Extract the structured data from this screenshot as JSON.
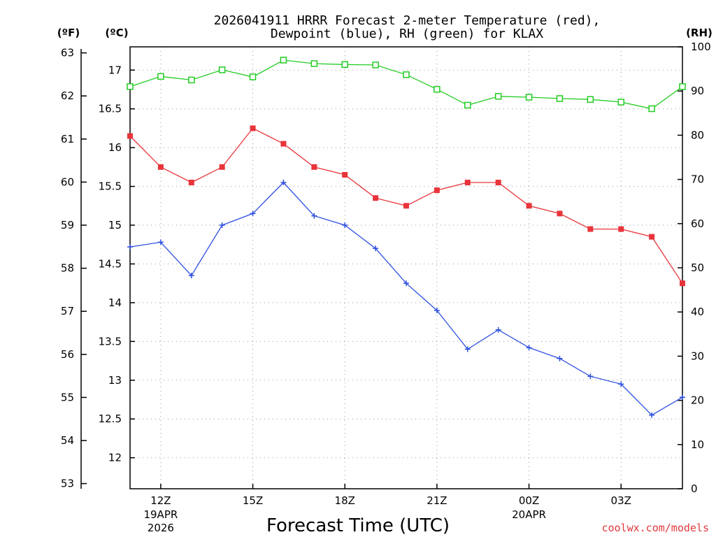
{
  "chart_data": {
    "type": "line",
    "title_line1": "2026041911 HRRR Forecast 2-meter Temperature (red),",
    "title_line2": "Dewpoint (blue), RH (green) for KLAX",
    "xlabel": "Forecast Time (UTC)",
    "credit": "coolwx.com/models",
    "units": {
      "f": "(ºF)",
      "c": "(ºC)",
      "rh": "(RH)"
    },
    "x_hours": [
      11,
      12,
      13,
      14,
      15,
      16,
      17,
      18,
      19,
      20,
      21,
      22,
      23,
      24,
      25,
      26,
      27,
      28,
      29
    ],
    "x_range": [
      11,
      29
    ],
    "x_ticks": [
      {
        "hour": 12,
        "label": "12Z",
        "sub1": "19APR",
        "sub2": "2026"
      },
      {
        "hour": 15,
        "label": "15Z",
        "sub1": "",
        "sub2": ""
      },
      {
        "hour": 18,
        "label": "18Z",
        "sub1": "",
        "sub2": ""
      },
      {
        "hour": 21,
        "label": "21Z",
        "sub1": "",
        "sub2": ""
      },
      {
        "hour": 24,
        "label": "00Z",
        "sub1": "20APR",
        "sub2": ""
      },
      {
        "hour": 27,
        "label": "03Z",
        "sub1": "",
        "sub2": ""
      }
    ],
    "c_range": [
      11.6,
      17.3
    ],
    "c_ticks": [
      "12",
      "12.5",
      "13",
      "13.5",
      "14",
      "14.5",
      "15",
      "15.5",
      "16",
      "16.5",
      "17"
    ],
    "f_ticks": [
      "53",
      "54",
      "55",
      "56",
      "57",
      "58",
      "59",
      "60",
      "61",
      "62",
      "63"
    ],
    "rh_range": [
      0,
      100
    ],
    "rh_ticks": [
      "0",
      "10",
      "20",
      "30",
      "40",
      "50",
      "60",
      "70",
      "80",
      "90",
      "100"
    ],
    "series": [
      {
        "name": "Temperature",
        "color": "#e8343a",
        "marker": "filled-square",
        "values": [
          16.15,
          15.75,
          15.55,
          15.75,
          16.25,
          16.05,
          15.75,
          15.65,
          15.35,
          15.25,
          15.45,
          15.55,
          15.55,
          15.25,
          15.15,
          14.95,
          14.95,
          14.85,
          14.25
        ]
      },
      {
        "name": "Dewpoint",
        "color": "#2d4fe0",
        "marker": "plus",
        "values": [
          14.72,
          14.78,
          14.35,
          15.0,
          15.15,
          15.55,
          15.12,
          15.0,
          14.7,
          14.25,
          13.9,
          13.4,
          13.65,
          13.42,
          13.28,
          13.05,
          12.95,
          12.55,
          12.78
        ]
      },
      {
        "name": "RH",
        "color": "#22cc22",
        "marker": "open-square",
        "values": [
          91,
          93.3,
          92.5,
          94.8,
          93.2,
          97,
          96.2,
          96,
          95.9,
          93.7,
          90.4,
          86.8,
          88.8,
          88.6,
          88.3,
          88.1,
          87.5,
          86,
          91
        ]
      }
    ]
  }
}
